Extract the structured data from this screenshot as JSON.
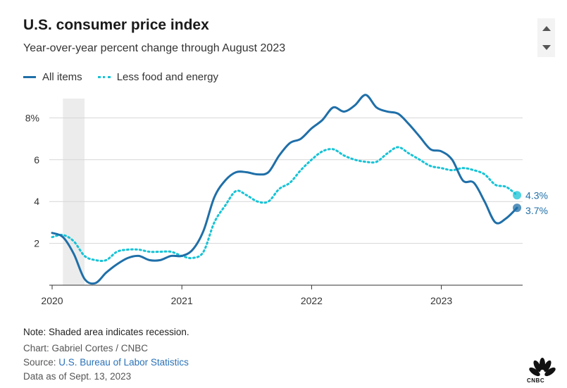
{
  "header": {
    "title": "U.S. consumer price index",
    "subtitle": "Year-over-year percent change through August 2023"
  },
  "legend": {
    "all_items": "All items",
    "less_food_energy": "Less food and energy"
  },
  "colors": {
    "all_items": "#1f6fa8",
    "less_food_energy": "#17c3d6",
    "recession": "#ececec",
    "grid": "#d6d6d6"
  },
  "icons": {
    "scroll_up": "triangle-up-icon",
    "scroll_down": "triangle-down-icon",
    "logo": "cnbc-peacock-logo"
  },
  "chart_data": {
    "type": "line",
    "title": "U.S. consumer price index",
    "subtitle": "Year-over-year percent change through August 2023",
    "xlabel": "",
    "ylabel": "",
    "xlim": [
      "2020-01",
      "2023-08"
    ],
    "ylim": [
      0,
      9
    ],
    "yticks": [
      2,
      4,
      6,
      8
    ],
    "ytick_labels": [
      "2",
      "4",
      "6",
      "8%"
    ],
    "xticks": [
      "2020",
      "2021",
      "2022",
      "2023"
    ],
    "grid": true,
    "legend": "top-left",
    "recession": {
      "start": "2020-02",
      "end": "2020-04"
    },
    "x": [
      "2020-01",
      "2020-02",
      "2020-03",
      "2020-04",
      "2020-05",
      "2020-06",
      "2020-07",
      "2020-08",
      "2020-09",
      "2020-10",
      "2020-11",
      "2020-12",
      "2021-01",
      "2021-02",
      "2021-03",
      "2021-04",
      "2021-05",
      "2021-06",
      "2021-07",
      "2021-08",
      "2021-09",
      "2021-10",
      "2021-11",
      "2021-12",
      "2022-01",
      "2022-02",
      "2022-03",
      "2022-04",
      "2022-05",
      "2022-06",
      "2022-07",
      "2022-08",
      "2022-09",
      "2022-10",
      "2022-11",
      "2022-12",
      "2023-01",
      "2023-02",
      "2023-03",
      "2023-04",
      "2023-05",
      "2023-06",
      "2023-07",
      "2023-08"
    ],
    "series": [
      {
        "name": "All items",
        "style": "solid",
        "values": [
          2.5,
          2.3,
          1.5,
          0.3,
          0.1,
          0.6,
          1.0,
          1.3,
          1.4,
          1.2,
          1.2,
          1.4,
          1.4,
          1.7,
          2.6,
          4.2,
          5.0,
          5.4,
          5.4,
          5.3,
          5.4,
          6.2,
          6.8,
          7.0,
          7.5,
          7.9,
          8.5,
          8.3,
          8.6,
          9.1,
          8.5,
          8.3,
          8.2,
          7.7,
          7.1,
          6.5,
          6.4,
          6.0,
          5.0,
          4.9,
          4.0,
          3.0,
          3.2,
          3.7
        ],
        "end_label": "3.7%"
      },
      {
        "name": "Less food and energy",
        "style": "dotted",
        "values": [
          2.3,
          2.4,
          2.1,
          1.4,
          1.2,
          1.2,
          1.6,
          1.7,
          1.7,
          1.6,
          1.6,
          1.6,
          1.4,
          1.3,
          1.6,
          3.0,
          3.8,
          4.5,
          4.3,
          4.0,
          4.0,
          4.6,
          4.9,
          5.5,
          6.0,
          6.4,
          6.5,
          6.2,
          6.0,
          5.9,
          5.9,
          6.3,
          6.6,
          6.3,
          6.0,
          5.7,
          5.6,
          5.5,
          5.6,
          5.5,
          5.3,
          4.8,
          4.7,
          4.3
        ],
        "end_label": "4.3%"
      }
    ]
  },
  "footer": {
    "note": "Note: Shaded area indicates recession.",
    "chart_credit": "Chart: Gabriel Cortes / CNBC",
    "source_prefix": "Source: ",
    "source_link": "U.S. Bureau of Labor Statistics",
    "data_date": "Data as of Sept. 13, 2023"
  },
  "logo": {
    "text": "CNBC"
  }
}
